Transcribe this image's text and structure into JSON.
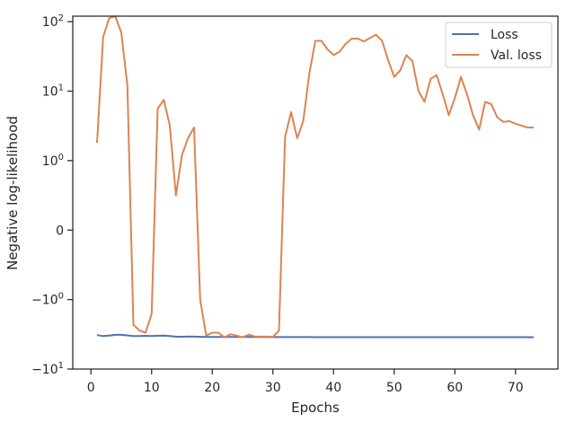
{
  "chart_data": {
    "type": "line",
    "title": "",
    "xlabel": "Epochs",
    "ylabel": "Negative log-likelihood",
    "yscale": "symlog",
    "xlim": [
      -3,
      77
    ],
    "ylim": [
      -10,
      120
    ],
    "grid": false,
    "legend_position": "top-right",
    "x_ticks": [
      {
        "value": 0,
        "label": "0"
      },
      {
        "value": 10,
        "label": "10"
      },
      {
        "value": 20,
        "label": "20"
      },
      {
        "value": 30,
        "label": "30"
      },
      {
        "value": 40,
        "label": "40"
      },
      {
        "value": 50,
        "label": "50"
      },
      {
        "value": 60,
        "label": "60"
      },
      {
        "value": 70,
        "label": "70"
      }
    ],
    "y_ticks": [
      {
        "value": 100,
        "base": "10",
        "exp": "2"
      },
      {
        "value": 10,
        "base": "10",
        "exp": "1"
      },
      {
        "value": 1,
        "base": "10",
        "exp": "0"
      },
      {
        "value": 0,
        "base": "0",
        "exp": ""
      },
      {
        "value": -1,
        "base": "−10",
        "exp": "0"
      },
      {
        "value": -10,
        "base": "−10",
        "exp": "1"
      }
    ],
    "series": [
      {
        "name": "Loss",
        "color": "#4c72b0",
        "x": [
          1,
          2,
          3,
          4,
          5,
          6,
          7,
          8,
          9,
          10,
          11,
          12,
          13,
          14,
          15,
          16,
          17,
          18,
          19,
          20,
          21,
          22,
          23,
          24,
          25,
          26,
          27,
          28,
          29,
          30,
          31,
          32,
          33,
          34,
          35,
          36,
          37,
          38,
          39,
          40,
          41,
          42,
          43,
          44,
          45,
          46,
          47,
          48,
          49,
          50,
          51,
          52,
          53,
          54,
          55,
          56,
          57,
          58,
          59,
          60,
          61,
          62,
          63,
          64,
          65,
          66,
          67,
          68,
          69,
          70,
          71,
          72,
          73
        ],
        "values": [
          -3.25,
          -3.35,
          -3.3,
          -3.22,
          -3.22,
          -3.28,
          -3.35,
          -3.35,
          -3.33,
          -3.34,
          -3.32,
          -3.3,
          -3.35,
          -3.42,
          -3.44,
          -3.4,
          -3.42,
          -3.44,
          -3.45,
          -3.45,
          -3.46,
          -3.46,
          -3.46,
          -3.46,
          -3.46,
          -3.46,
          -3.46,
          -3.47,
          -3.47,
          -3.47,
          -3.47,
          -3.47,
          -3.47,
          -3.47,
          -3.47,
          -3.47,
          -3.48,
          -3.48,
          -3.48,
          -3.48,
          -3.48,
          -3.48,
          -3.48,
          -3.48,
          -3.48,
          -3.48,
          -3.48,
          -3.48,
          -3.48,
          -3.48,
          -3.48,
          -3.48,
          -3.48,
          -3.48,
          -3.48,
          -3.48,
          -3.48,
          -3.48,
          -3.48,
          -3.48,
          -3.48,
          -3.48,
          -3.48,
          -3.48,
          -3.48,
          -3.48,
          -3.48,
          -3.48,
          -3.48,
          -3.48,
          -3.48,
          -3.48,
          -3.49
        ]
      },
      {
        "name": "Val. loss",
        "color": "#dd8452",
        "x": [
          1,
          2,
          3,
          4,
          5,
          6,
          7,
          8,
          9,
          10,
          11,
          12,
          13,
          14,
          15,
          16,
          17,
          18,
          19,
          20,
          21,
          22,
          23,
          24,
          25,
          26,
          27,
          28,
          29,
          30,
          31,
          32,
          33,
          34,
          35,
          36,
          37,
          38,
          39,
          40,
          41,
          42,
          43,
          44,
          45,
          46,
          47,
          48,
          49,
          50,
          51,
          52,
          53,
          54,
          55,
          56,
          57,
          58,
          59,
          60,
          61,
          62,
          63,
          64,
          65,
          66,
          67,
          68,
          69,
          70,
          71,
          72,
          73
        ],
        "values": [
          1.8,
          60,
          112,
          120,
          70,
          12,
          -2.3,
          -2.8,
          -3.0,
          -1.6,
          5.6,
          7.5,
          3.2,
          0.5,
          1.2,
          2.1,
          3.0,
          -1,
          -3.3,
          -3.0,
          -3.0,
          -3.5,
          -3.15,
          -3.3,
          -3.5,
          -3.2,
          -3.4,
          -3.42,
          -3.42,
          -3.44,
          -2.8,
          2.2,
          5.0,
          2.1,
          3.7,
          18,
          53,
          53,
          40,
          33,
          37,
          48,
          57,
          57,
          52,
          58,
          65,
          53,
          28,
          16,
          20,
          33,
          27,
          10,
          7,
          15,
          17,
          9,
          4.5,
          8,
          16,
          9,
          4.5,
          2.8,
          7,
          6.5,
          4.2,
          3.6,
          3.7,
          3.4,
          3.2,
          3.0,
          3.0
        ]
      }
    ]
  }
}
